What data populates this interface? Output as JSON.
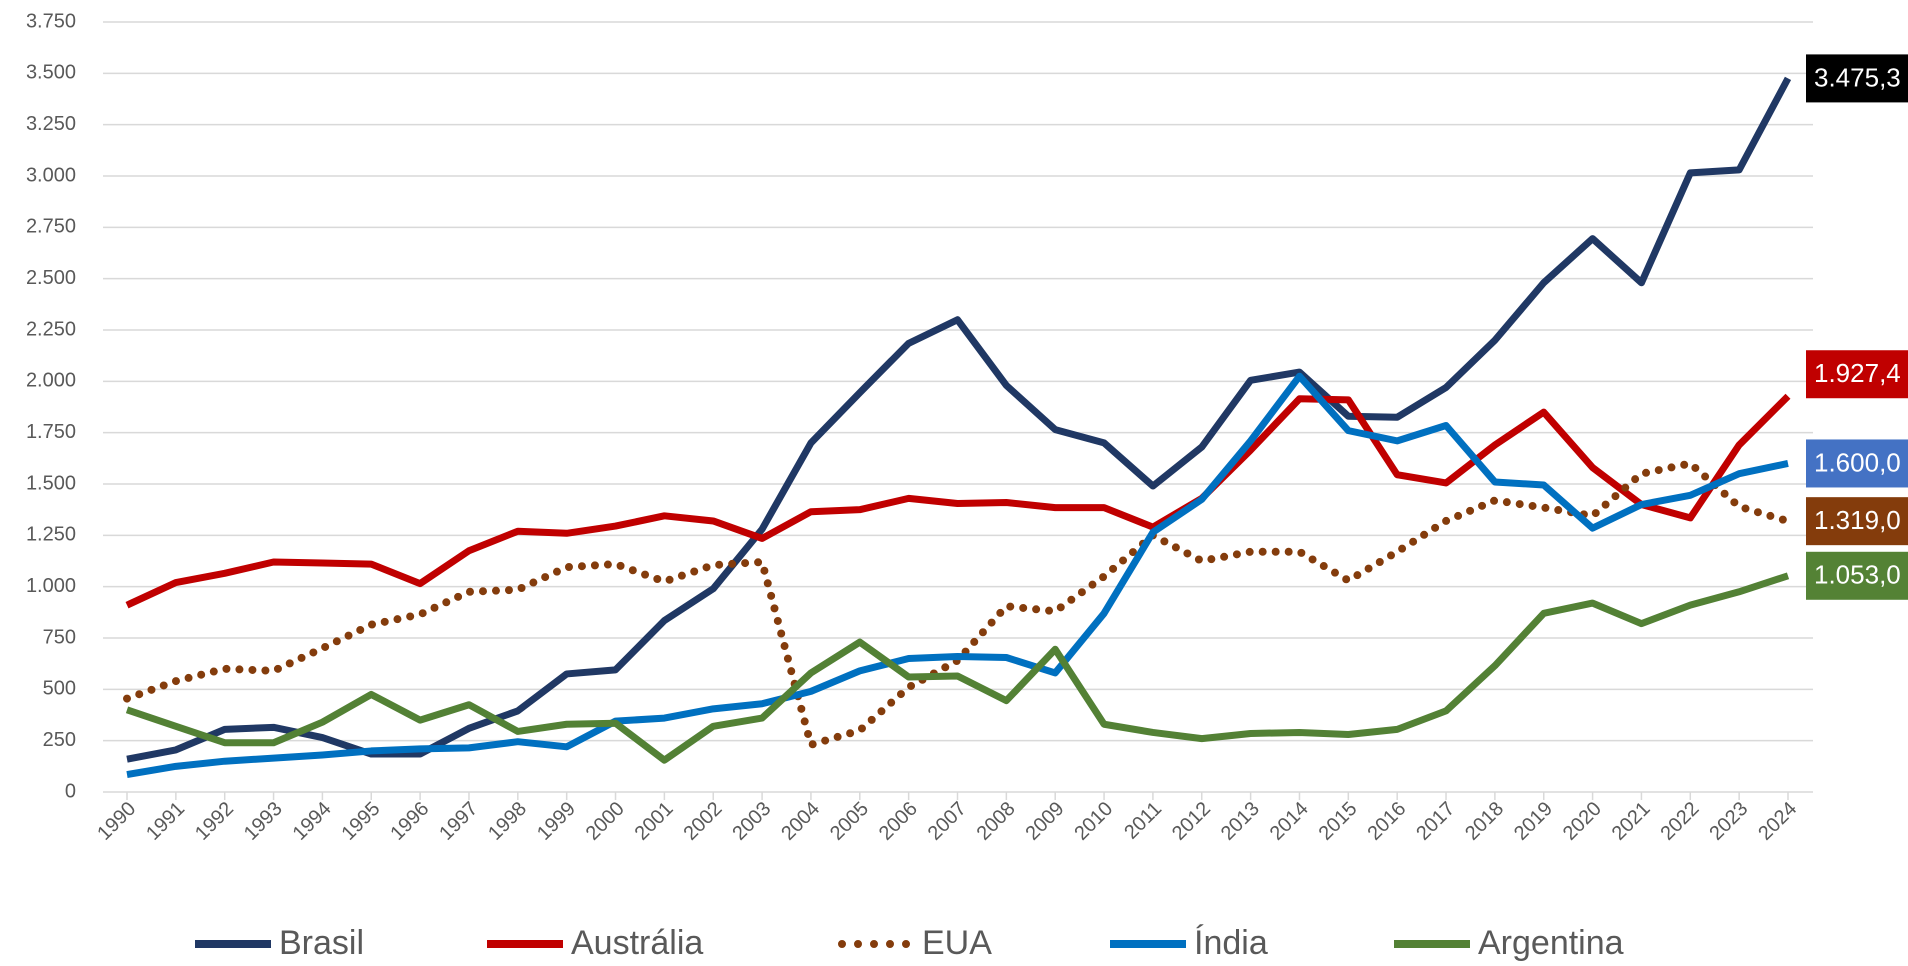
{
  "chart_data": {
    "type": "line",
    "x": [
      1990,
      1991,
      1992,
      1993,
      1994,
      1995,
      1996,
      1997,
      1998,
      1999,
      2000,
      2001,
      2002,
      2003,
      2004,
      2005,
      2006,
      2007,
      2008,
      2009,
      2010,
      2011,
      2012,
      2013,
      2014,
      2015,
      2016,
      2017,
      2018,
      2019,
      2020,
      2021,
      2022,
      2023,
      2024
    ],
    "xlim": [
      1990,
      2024
    ],
    "ylim": [
      0,
      3750
    ],
    "yticks": [
      0,
      250,
      500,
      750,
      {
        "value": 1000,
        "label": "1.000"
      },
      {
        "value": 1250,
        "label": "1.250"
      },
      {
        "value": 1500,
        "label": "1.500"
      },
      {
        "value": 1750,
        "label": "1.750"
      },
      {
        "value": 2000,
        "label": "2.000"
      },
      {
        "value": 2250,
        "label": "2.250"
      },
      {
        "value": 2500,
        "label": "2.500"
      },
      {
        "value": 2750,
        "label": "2.750"
      },
      {
        "value": 3000,
        "label": "3.000"
      },
      {
        "value": 3250,
        "label": "3.250"
      },
      {
        "value": 3500,
        "label": "3.500"
      },
      {
        "value": 3750,
        "label": "3.750"
      }
    ],
    "grid": true,
    "legend": "bottom",
    "series": [
      {
        "name": "Brasil",
        "color": "#203864",
        "label_color": "#000000",
        "values": [
          160,
          205,
          305,
          315,
          265,
          185,
          185,
          310,
          395,
          575,
          595,
          835,
          990,
          1280,
          1700,
          1945,
          2185,
          2300,
          1980,
          1765,
          1700,
          1490,
          1680,
          2005,
          2045,
          1830,
          1825,
          1970,
          2200,
          2480,
          2695,
          2480,
          3015,
          3030,
          3475.3
        ],
        "value_labels": [
          null,
          null,
          null,
          null,
          null,
          null,
          null,
          null,
          null,
          null,
          null,
          null,
          null,
          null,
          null,
          null,
          null,
          null,
          null,
          null,
          null,
          null,
          null,
          null,
          null,
          null,
          null,
          null,
          null,
          null,
          null,
          null,
          null,
          null,
          "3.475,3"
        ]
      },
      {
        "name": "Austrália",
        "color": "#c00000",
        "label_color": "#c00000",
        "values": [
          910,
          1020,
          1065,
          1120,
          1115,
          1110,
          1015,
          1175,
          1270,
          1260,
          1295,
          1345,
          1320,
          1235,
          1365,
          1375,
          1430,
          1405,
          1410,
          1385,
          1385,
          1290,
          1430,
          1665,
          1915,
          1910,
          1545,
          1505,
          1690,
          1850,
          1580,
          1400,
          1335,
          1690,
          1927.4
        ],
        "value_labels": [
          null,
          null,
          null,
          null,
          null,
          null,
          null,
          null,
          null,
          null,
          null,
          null,
          null,
          null,
          null,
          null,
          null,
          null,
          null,
          null,
          null,
          null,
          null,
          null,
          null,
          null,
          null,
          null,
          null,
          null,
          null,
          null,
          null,
          null,
          "1.927,4"
        ]
      },
      {
        "name": "EUA",
        "color": "#843c0c",
        "label_color": "#843c0c",
        "dotted": true,
        "values": [
          455,
          540,
          600,
          590,
          700,
          815,
          865,
          975,
          985,
          1095,
          1110,
          1025,
          1105,
          1120,
          230,
          300,
          510,
          640,
          905,
          880,
          1050,
          1250,
          1125,
          1170,
          1170,
          1030,
          1170,
          1320,
          1420,
          1385,
          1345,
          1550,
          1600,
          1390,
          1319
        ],
        "value_labels": [
          null,
          null,
          null,
          null,
          null,
          null,
          null,
          null,
          null,
          null,
          null,
          null,
          null,
          null,
          null,
          null,
          null,
          null,
          null,
          null,
          null,
          null,
          null,
          null,
          null,
          null,
          null,
          null,
          null,
          null,
          null,
          null,
          null,
          null,
          "1.319,0"
        ]
      },
      {
        "name": "Índia",
        "color": "#0070c0",
        "label_color": "#4472c4",
        "values": [
          85,
          125,
          150,
          165,
          180,
          200,
          210,
          215,
          245,
          220,
          345,
          360,
          405,
          430,
          490,
          590,
          650,
          660,
          655,
          580,
          870,
          1265,
          1425,
          1710,
          2025,
          1760,
          1710,
          1785,
          1510,
          1495,
          1285,
          1400,
          1445,
          1550,
          1600
        ],
        "value_labels": [
          null,
          null,
          null,
          null,
          null,
          null,
          null,
          null,
          null,
          null,
          null,
          null,
          null,
          null,
          null,
          null,
          null,
          null,
          null,
          null,
          null,
          null,
          null,
          null,
          null,
          null,
          null,
          null,
          null,
          null,
          null,
          null,
          null,
          null,
          "1.600,0"
        ]
      },
      {
        "name": "Argentina",
        "color": "#538135",
        "label_color": "#548235",
        "values": [
          400,
          320,
          240,
          240,
          340,
          475,
          350,
          425,
          295,
          330,
          335,
          155,
          320,
          360,
          580,
          730,
          560,
          565,
          445,
          695,
          330,
          290,
          260,
          285,
          290,
          280,
          305,
          395,
          615,
          870,
          920,
          820,
          910,
          975,
          1053
        ],
        "value_labels": [
          null,
          null,
          null,
          null,
          null,
          null,
          null,
          null,
          null,
          null,
          null,
          null,
          null,
          null,
          null,
          null,
          null,
          null,
          null,
          null,
          null,
          null,
          null,
          null,
          null,
          null,
          null,
          null,
          null,
          null,
          null,
          null,
          null,
          null,
          "1.053,0"
        ]
      }
    ]
  }
}
